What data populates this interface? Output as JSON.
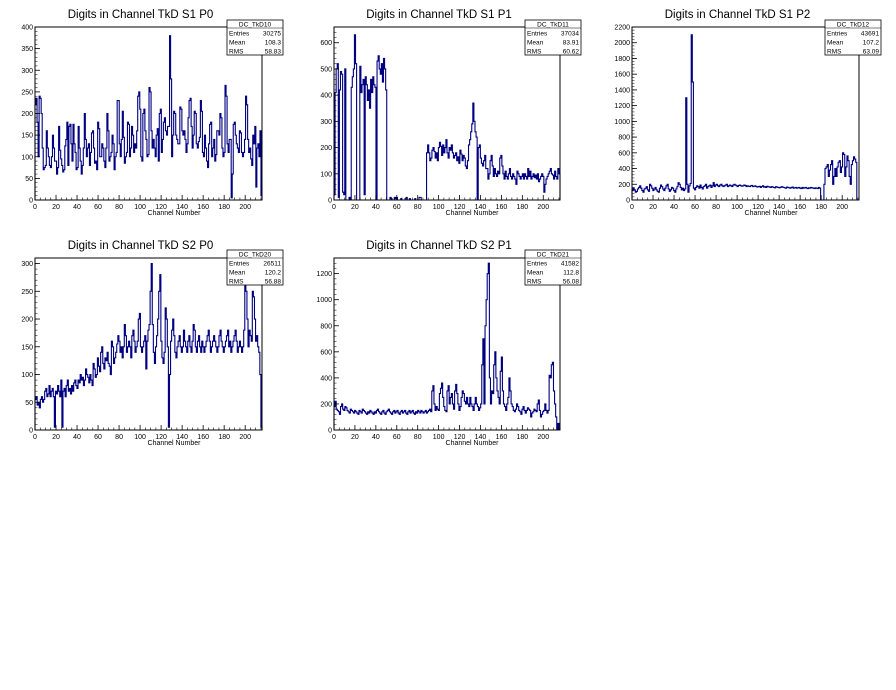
{
  "colors": {
    "line": "#000080",
    "frame": "#000000",
    "background": "#ffffff"
  },
  "chart_data": [
    {
      "type": "bar",
      "title": "Digits in Channel TkD S1 P0",
      "xlabel": "Channel Number",
      "ylabel": "",
      "xlim": [
        0,
        216
      ],
      "ylim": [
        0,
        400
      ],
      "xticks": [
        "0",
        "20",
        "40",
        "60",
        "80",
        "100",
        "120",
        "140",
        "160",
        "180",
        "200"
      ],
      "yticks": [
        "0",
        "50",
        "100",
        "150",
        "200",
        "250",
        "300",
        "350",
        "400"
      ],
      "stats": {
        "name": "DC_TkD10",
        "entries_label": "Entries",
        "entries": "30275",
        "mean_label": "Mean",
        "mean": "108.3",
        "rms_label": "RMS",
        "rms": "58.83"
      },
      "values": [
        220,
        235,
        180,
        100,
        240,
        235,
        200,
        120,
        70,
        75,
        80,
        160,
        120,
        100,
        80,
        75,
        100,
        150,
        120,
        90,
        90,
        60,
        75,
        170,
        115,
        95,
        80,
        65,
        70,
        125,
        140,
        180,
        80,
        170,
        175,
        130,
        90,
        175,
        130,
        110,
        70,
        75,
        170,
        120,
        90,
        60,
        80,
        120,
        200,
        140,
        100,
        120,
        130,
        80,
        110,
        155,
        160,
        120,
        85,
        90,
        70,
        180,
        165,
        100,
        100,
        130,
        120,
        90,
        75,
        120,
        200,
        160,
        90,
        100,
        110,
        150,
        130,
        70,
        100,
        110,
        230,
        230,
        130,
        100,
        140,
        205,
        145,
        85,
        100,
        110,
        180,
        175,
        100,
        120,
        170,
        150,
        110,
        130,
        120,
        160,
        240,
        250,
        210,
        100,
        90,
        200,
        210,
        160,
        140,
        100,
        105,
        260,
        250,
        160,
        120,
        140,
        120,
        100,
        150,
        165,
        90,
        200,
        210,
        110,
        140,
        180,
        190,
        160,
        150,
        170,
        170,
        380,
        280,
        100,
        150,
        205,
        200,
        150,
        140,
        130,
        130,
        215,
        210,
        160,
        150,
        160,
        140,
        110,
        130,
        190,
        230,
        235,
        170,
        120,
        150,
        205,
        200,
        130,
        120,
        135,
        145,
        230,
        205,
        110,
        100,
        150,
        120,
        90,
        75,
        130,
        175,
        180,
        100,
        120,
        140,
        90,
        105,
        160,
        160,
        150,
        200,
        190,
        120,
        100,
        110,
        265,
        240,
        130,
        110,
        140,
        140,
        5,
        60,
        175,
        180,
        150,
        130,
        120,
        110,
        160,
        155,
        110,
        100,
        110,
        140,
        240,
        220,
        140,
        110,
        120,
        95,
        80,
        150,
        130,
        170,
        30,
        120,
        130,
        100,
        160,
        10
      ]
    },
    {
      "type": "bar",
      "title": "Digits in Channel TkD S1 P1",
      "xlabel": "Channel Number",
      "ylabel": "",
      "xlim": [
        0,
        216
      ],
      "ylim": [
        0,
        660
      ],
      "xticks": [
        "0",
        "20",
        "40",
        "60",
        "80",
        "100",
        "120",
        "140",
        "160",
        "180",
        "200"
      ],
      "yticks": [
        "0",
        "100",
        "200",
        "300",
        "400",
        "500",
        "600"
      ],
      "stats": {
        "name": "DC_TkD11",
        "entries_label": "Entries",
        "entries": "37034",
        "mean_label": "Mean",
        "mean": "83.91",
        "rms_label": "RMS",
        "rms": "60.62"
      },
      "values": [
        20,
        410,
        500,
        520,
        10,
        420,
        490,
        480,
        30,
        20,
        500,
        0,
        0,
        0,
        10,
        0,
        430,
        470,
        500,
        630,
        520,
        0,
        0,
        0,
        510,
        410,
        440,
        460,
        20,
        470,
        440,
        380,
        420,
        350,
        460,
        410,
        470,
        440,
        430,
        0,
        530,
        550,
        500,
        480,
        520,
        450,
        540,
        500,
        420,
        0,
        0,
        0,
        10,
        5,
        0,
        0,
        10,
        5,
        10,
        0,
        0,
        0,
        5,
        0,
        0,
        0,
        5,
        10,
        0,
        0,
        5,
        0,
        0,
        0,
        0,
        5,
        0,
        0,
        0,
        10,
        10,
        0,
        0,
        0,
        0,
        0,
        180,
        210,
        180,
        150,
        160,
        190,
        200,
        185,
        160,
        180,
        150,
        200,
        220,
        205,
        170,
        210,
        180,
        200,
        230,
        180,
        160,
        200,
        190,
        210,
        180,
        160,
        170,
        180,
        150,
        165,
        140,
        190,
        175,
        150,
        170,
        160,
        130,
        120,
        150,
        210,
        230,
        260,
        290,
        370,
        300,
        260,
        240,
        0,
        200,
        210,
        160,
        140,
        130,
        150,
        170,
        120,
        120,
        80,
        100,
        150,
        170,
        130,
        90,
        120,
        100,
        90,
        110,
        100,
        160,
        170,
        130,
        100,
        80,
        110,
        90,
        80,
        100,
        120,
        90,
        80,
        100,
        90,
        80,
        60,
        110,
        100,
        90,
        80,
        90,
        100,
        80,
        100,
        90,
        80,
        120,
        90,
        110,
        80,
        90,
        100,
        85,
        95,
        80,
        100,
        70,
        80,
        90,
        100,
        90,
        30,
        60,
        80,
        90,
        100,
        110,
        120,
        100,
        95,
        80,
        110,
        90,
        80,
        120,
        100
      ]
    },
    {
      "type": "bar",
      "title": "Digits in Channel TkD S1 P2",
      "xlabel": "Channel Number",
      "ylabel": "",
      "xlim": [
        0,
        216
      ],
      "ylim": [
        0,
        2200
      ],
      "xticks": [
        "0",
        "20",
        "40",
        "60",
        "80",
        "100",
        "120",
        "140",
        "160",
        "180",
        "200"
      ],
      "yticks": [
        "0",
        "200",
        "400",
        "600",
        "800",
        "1000",
        "1200",
        "1400",
        "1600",
        "1800",
        "2000",
        "2200"
      ],
      "stats": {
        "name": "DC_TkD12",
        "entries_label": "Entries",
        "entries": "43691",
        "mean_label": "Mean",
        "mean": "107.2",
        "rms_label": "RMS",
        "rms": "63.09"
      },
      "values": [
        120,
        150,
        130,
        100,
        110,
        140,
        160,
        180,
        150,
        120,
        100,
        140,
        150,
        170,
        130,
        110,
        200,
        180,
        150,
        120,
        140,
        160,
        130,
        110,
        100,
        150,
        190,
        170,
        140,
        120,
        150,
        180,
        200,
        140,
        110,
        130,
        160,
        150,
        120,
        100,
        140,
        170,
        220,
        200,
        160,
        130,
        150,
        120,
        140,
        1300,
        200,
        100,
        180,
        210,
        2100,
        1500,
        150,
        130,
        160,
        180,
        170,
        150,
        190,
        160,
        140,
        170,
        180,
        200,
        150,
        170,
        180,
        190,
        160,
        180,
        220,
        170,
        190,
        200,
        180,
        170,
        190,
        200,
        180,
        170,
        180,
        190,
        200,
        170,
        180,
        190,
        180,
        170,
        190,
        200,
        190,
        180,
        170,
        185,
        190,
        180,
        175,
        180,
        190,
        185,
        170,
        180,
        175,
        170,
        180,
        185,
        170,
        175,
        180,
        170,
        165,
        170,
        175,
        160,
        170,
        180,
        165,
        170,
        160,
        175,
        170,
        165,
        160,
        170,
        165,
        160,
        155,
        170,
        165,
        160,
        155,
        160,
        170,
        165,
        160,
        155,
        150,
        165,
        160,
        155,
        150,
        160,
        165,
        150,
        155,
        160,
        150,
        155,
        160,
        150,
        145,
        160,
        150,
        155,
        160,
        150,
        145,
        155,
        150,
        160,
        155,
        150,
        145,
        155,
        150,
        145,
        160,
        150,
        0,
        0,
        0,
        200,
        400,
        420,
        450,
        300,
        380,
        450,
        500,
        200,
        300,
        400,
        300,
        420,
        480,
        500,
        350,
        420,
        600,
        580,
        300,
        420,
        560,
        500,
        300,
        200,
        450,
        500,
        550,
        520,
        480,
        0,
        0
      ]
    },
    {
      "type": "bar",
      "title": "Digits in Channel TkD S2 P0",
      "xlabel": "Channel Number",
      "ylabel": "",
      "xlim": [
        0,
        216
      ],
      "ylim": [
        0,
        310
      ],
      "xticks": [
        "0",
        "20",
        "40",
        "60",
        "80",
        "100",
        "120",
        "140",
        "160",
        "180",
        "200"
      ],
      "yticks": [
        "0",
        "50",
        "100",
        "150",
        "200",
        "250",
        "300"
      ],
      "stats": {
        "name": "DC_TkD20",
        "entries_label": "Entries",
        "entries": "26511",
        "mean_label": "Mean",
        "mean": "120.2",
        "rms_label": "RMS",
        "rms": "56.88"
      },
      "values": [
        55,
        60,
        45,
        50,
        40,
        55,
        60,
        50,
        55,
        70,
        75,
        60,
        65,
        80,
        60,
        70,
        75,
        60,
        5,
        70,
        65,
        80,
        70,
        60,
        90,
        5,
        70,
        75,
        60,
        80,
        90,
        70,
        75,
        65,
        80,
        70,
        85,
        90,
        80,
        75,
        90,
        85,
        100,
        90,
        95,
        80,
        90,
        110,
        100,
        95,
        85,
        100,
        90,
        80,
        120,
        110,
        95,
        100,
        130,
        115,
        105,
        140,
        150,
        120,
        110,
        130,
        125,
        140,
        120,
        115,
        100,
        160,
        150,
        120,
        130,
        140,
        155,
        170,
        160,
        140,
        150,
        130,
        150,
        190,
        170,
        140,
        150,
        160,
        150,
        130,
        170,
        180,
        160,
        140,
        150,
        160,
        200,
        210,
        150,
        140,
        150,
        160,
        170,
        110,
        160,
        180,
        190,
        250,
        300,
        190,
        140,
        120,
        150,
        170,
        200,
        250,
        280,
        160,
        130,
        120,
        140,
        220,
        200,
        150,
        5,
        100,
        160,
        180,
        200,
        170,
        140,
        130,
        150,
        160,
        170,
        150,
        140,
        150,
        180,
        160,
        150,
        140,
        160,
        170,
        150,
        140,
        160,
        190,
        180,
        150,
        140,
        160,
        170,
        150,
        140,
        160,
        150,
        140,
        150,
        160,
        170,
        180,
        160,
        140,
        150,
        160,
        170,
        160,
        150,
        140,
        150,
        170,
        180,
        160,
        150,
        140,
        150,
        160,
        170,
        180,
        150,
        160,
        140,
        150,
        160,
        170,
        180,
        160,
        140,
        150,
        160,
        150,
        140,
        150,
        180,
        260,
        250,
        200,
        150,
        180,
        170,
        160,
        250,
        240,
        200,
        160,
        170,
        150,
        140,
        100,
        5
      ]
    },
    {
      "type": "bar",
      "title": "Digits in Channel TkD S2 P1",
      "xlabel": "Channel Number",
      "ylabel": "",
      "xlim": [
        0,
        216
      ],
      "ylim": [
        0,
        1320
      ],
      "xticks": [
        "0",
        "20",
        "40",
        "60",
        "80",
        "100",
        "120",
        "140",
        "160",
        "180",
        "200"
      ],
      "yticks": [
        "0",
        "200",
        "400",
        "600",
        "800",
        "1000",
        "1200"
      ],
      "stats": {
        "name": "DC_TkD21",
        "entries_label": "Entries",
        "entries": "41582",
        "mean_label": "Mean",
        "mean": "112.8",
        "rms_label": "RMS",
        "rms": "56.08"
      },
      "values": [
        180,
        220,
        160,
        150,
        140,
        120,
        180,
        200,
        160,
        150,
        180,
        170,
        150,
        140,
        130,
        160,
        150,
        140,
        130,
        150,
        140,
        130,
        120,
        150,
        140,
        130,
        160,
        150,
        140,
        130,
        120,
        140,
        130,
        150,
        140,
        130,
        120,
        140,
        130,
        150,
        160,
        140,
        130,
        120,
        140,
        150,
        130,
        120,
        140,
        150,
        160,
        140,
        130,
        120,
        140,
        150,
        130,
        140,
        150,
        130,
        120,
        140,
        150,
        130,
        140,
        150,
        130,
        120,
        140,
        150,
        130,
        140,
        150,
        130,
        120,
        140,
        130,
        150,
        140,
        130,
        150,
        140,
        130,
        140,
        150,
        130,
        140,
        150,
        160,
        140,
        300,
        340,
        200,
        150,
        180,
        160,
        150,
        280,
        320,
        360,
        250,
        180,
        150,
        140,
        300,
        340,
        200,
        250,
        280,
        200,
        160,
        300,
        350,
        280,
        200,
        150,
        180,
        250,
        300,
        280,
        220,
        200,
        250,
        200,
        180,
        250,
        200,
        180,
        150,
        200,
        250,
        200,
        180,
        150,
        170,
        200,
        500,
        700,
        200,
        800,
        1000,
        1200,
        1280,
        400,
        200,
        300,
        280,
        500,
        600,
        400,
        300,
        250,
        200,
        450,
        560,
        300,
        200,
        180,
        150,
        200,
        250,
        400,
        300,
        200,
        180,
        150,
        140,
        160,
        200,
        180,
        150,
        140,
        120,
        160,
        180,
        150,
        130,
        150,
        170,
        160,
        150,
        100,
        130,
        140,
        160,
        150,
        140,
        200,
        230,
        150,
        100,
        120,
        140,
        150,
        200,
        150,
        130,
        150,
        420,
        400,
        500,
        520,
        300,
        200,
        100,
        0,
        50,
        0
      ]
    }
  ]
}
